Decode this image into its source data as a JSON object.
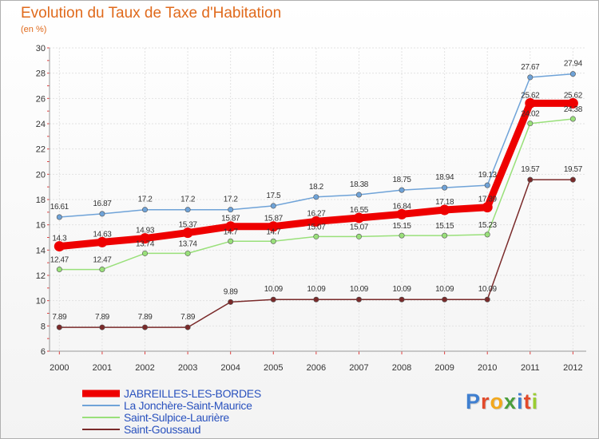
{
  "chart_data": {
    "type": "line",
    "title": "Evolution du Taux de Taxe d'Habitation",
    "subtitle": "(en %)",
    "x": [
      "2000",
      "2001",
      "2002",
      "2003",
      "2004",
      "2005",
      "2006",
      "2007",
      "2008",
      "2009",
      "2010",
      "2011",
      "2012"
    ],
    "ylim": [
      6,
      30
    ],
    "yticks": [
      6,
      8,
      10,
      12,
      14,
      16,
      18,
      20,
      22,
      24,
      26,
      28,
      30
    ],
    "grid": true,
    "legend_position": "bottom-left",
    "series": [
      {
        "name": "JABREILLES-LES-BORDES",
        "color": "#ee0000",
        "values": [
          14.3,
          14.63,
          14.93,
          15.37,
          15.87,
          15.87,
          16.27,
          16.55,
          16.84,
          17.18,
          17.39,
          25.62,
          25.62
        ],
        "labels": [
          "14.3",
          "14.63",
          "14.93",
          "15.37",
          "15.87",
          "15.87",
          "16.27",
          "16.55",
          "16.84",
          "17.18",
          "17.39",
          "25.62",
          "25.62"
        ]
      },
      {
        "name": "La Jonchère-Saint-Maurice",
        "color": "#6fa3d8",
        "values": [
          16.61,
          16.87,
          17.2,
          17.2,
          17.2,
          17.5,
          18.2,
          18.38,
          18.75,
          18.94,
          19.13,
          27.67,
          27.94
        ],
        "labels": [
          "16.61",
          "16.87",
          "17.2",
          "17.2",
          "17.2",
          "17.5",
          "18.2",
          "18.38",
          "18.75",
          "18.94",
          "19.13",
          "27.67",
          "27.94"
        ]
      },
      {
        "name": "Saint-Sulpice-Laurière",
        "color": "#99e07a",
        "values": [
          12.47,
          12.47,
          13.74,
          13.74,
          14.7,
          14.7,
          15.07,
          15.07,
          15.15,
          15.15,
          15.23,
          24.02,
          24.38
        ],
        "labels": [
          "12.47",
          "12.47",
          "13.74",
          "13.74",
          "14.7",
          "14.7",
          "15.07",
          "15.07",
          "15.15",
          "15.15",
          "15.23",
          "24.02",
          "24.38"
        ]
      },
      {
        "name": "Saint-Goussaud",
        "color": "#7a2a2a",
        "values": [
          7.89,
          7.89,
          7.89,
          7.89,
          9.89,
          10.09,
          10.09,
          10.09,
          10.09,
          10.09,
          10.09,
          19.57,
          19.57
        ],
        "labels": [
          "7.89",
          "7.89",
          "7.89",
          "7.89",
          "9.89",
          "10.09",
          "10.09",
          "10.09",
          "10.09",
          "10.09",
          "10.09",
          "19.57",
          "19.57"
        ]
      }
    ]
  },
  "logo": {
    "letters": [
      "P",
      "r",
      "o",
      "x",
      "i",
      "t",
      "i"
    ],
    "colors": [
      "#3f7fd0",
      "#e24a2b",
      "#f2a81d",
      "#4a9e3c",
      "#3f7fd0",
      "#e24a2b",
      "#9acd32"
    ]
  }
}
